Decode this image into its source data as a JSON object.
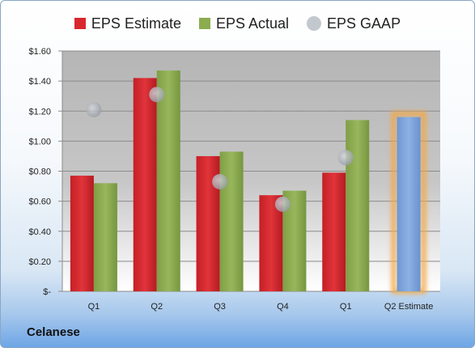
{
  "company": "Celanese",
  "chart_data": {
    "type": "bar",
    "categories": [
      "Q1",
      "Q2",
      "Q3",
      "Q4",
      "Q1",
      "Q2 Estimate"
    ],
    "series": [
      {
        "name": "EPS Estimate",
        "color": "#d9272e",
        "values": [
          0.77,
          1.42,
          0.9,
          0.64,
          0.79,
          null
        ]
      },
      {
        "name": "EPS Actual",
        "color": "#8cac50",
        "values": [
          0.72,
          1.47,
          0.93,
          0.67,
          1.14,
          1.16
        ]
      },
      {
        "name": "EPS GAAP",
        "color": "#b8bec6",
        "type": "scatter",
        "values": [
          1.21,
          1.31,
          0.73,
          0.58,
          0.89,
          null
        ]
      }
    ],
    "highlight": {
      "category": "Q2 Estimate",
      "color": "#7ea5dc",
      "glow": "#f3a845"
    },
    "ylim": [
      0,
      1.6
    ],
    "yticks": [
      {
        "value": 0,
        "label": "$-"
      },
      {
        "value": 0.2,
        "label": "$0.20"
      },
      {
        "value": 0.4,
        "label": "$0.40"
      },
      {
        "value": 0.6,
        "label": "$0.60"
      },
      {
        "value": 0.8,
        "label": "$0.80"
      },
      {
        "value": 1.0,
        "label": "$1.00"
      },
      {
        "value": 1.2,
        "label": "$1.20"
      },
      {
        "value": 1.4,
        "label": "$1.40"
      },
      {
        "value": 1.6,
        "label": "$1.60"
      }
    ],
    "grid": true,
    "legend_position": "top"
  }
}
